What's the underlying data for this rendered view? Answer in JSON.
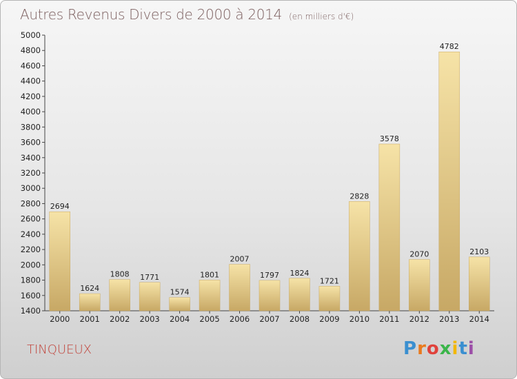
{
  "header": {
    "title": "Autres Revenus Divers de 2000 à 2014",
    "subtitle": "(en milliers d'€)"
  },
  "footer": {
    "location": "TINQUEUX",
    "brand": "Proxiti",
    "brand_colors": [
      "#3a8fd0",
      "#e97a1e",
      "#e0423c",
      "#3bb54a",
      "#f2b705",
      "#3a8fd0",
      "#9c4fa8"
    ]
  },
  "chart_data": {
    "type": "bar",
    "title": "Autres Revenus Divers de 2000 à 2014",
    "subtitle": "(en milliers d'€)",
    "xlabel": "",
    "ylabel": "",
    "categories": [
      "2000",
      "2001",
      "2002",
      "2003",
      "2004",
      "2005",
      "2006",
      "2007",
      "2008",
      "2009",
      "2010",
      "2011",
      "2012",
      "2013",
      "2014"
    ],
    "values": [
      2694,
      1624,
      1808,
      1771,
      1574,
      1801,
      2007,
      1797,
      1824,
      1721,
      2828,
      3578,
      2070,
      4782,
      2103
    ],
    "ylim": [
      1400,
      5000
    ],
    "yticks": [
      1400,
      1600,
      1800,
      2000,
      2200,
      2400,
      2600,
      2800,
      3000,
      3200,
      3400,
      3600,
      3800,
      4000,
      4200,
      4400,
      4600,
      4800,
      5000
    ],
    "grid": false,
    "legend": "none",
    "bar_color": "#e8cc80",
    "bar_color_light": "#f6e3a7",
    "bar_color_dark": "#c7a865"
  }
}
